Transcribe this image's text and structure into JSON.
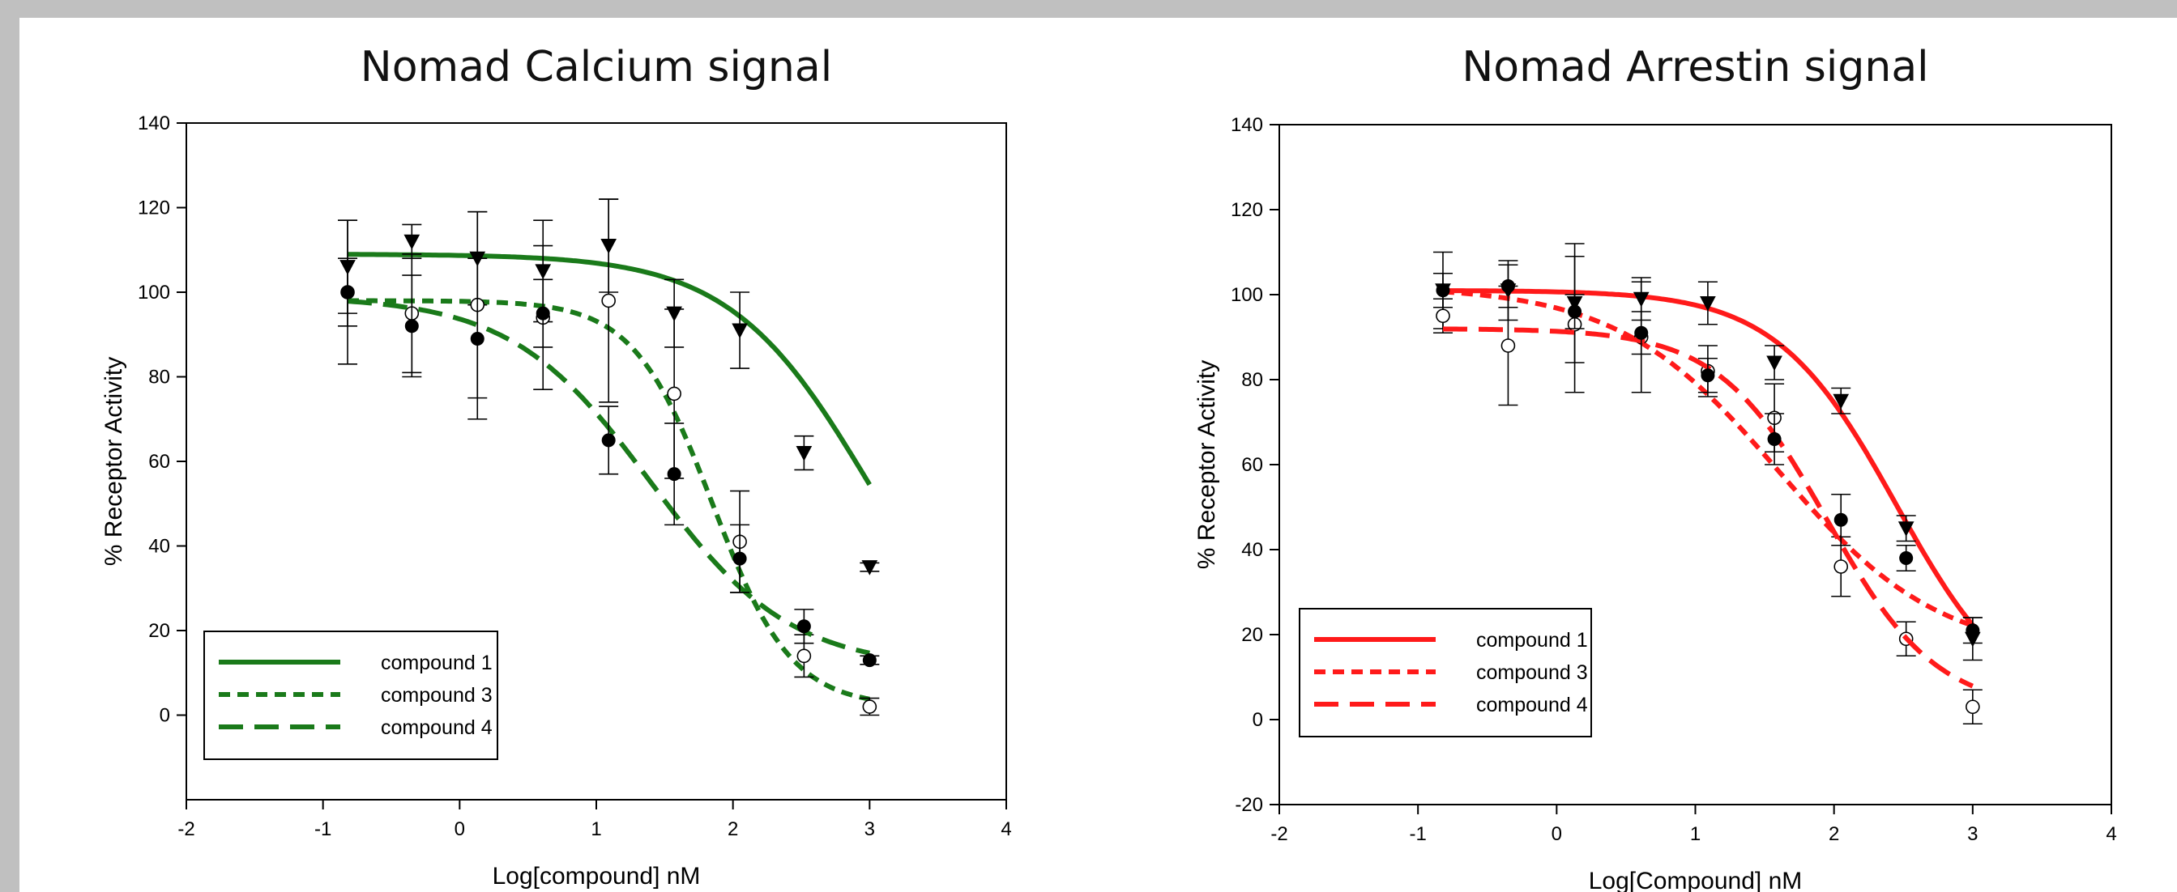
{
  "chart_data": [
    {
      "type": "scatter",
      "title": "Nomad Calcium signal",
      "xlabel": "Log[compound] nM",
      "ylabel": "% Receptor Activity",
      "xlim": [
        -2,
        4
      ],
      "ylim": [
        -20,
        140
      ],
      "x_ticks": [
        "-2",
        "-1",
        "0",
        "1",
        "2",
        "3",
        "4"
      ],
      "y_ticks": [
        "0",
        "20",
        "40",
        "60",
        "80",
        "100",
        "120",
        "140"
      ],
      "y_tick_values": [
        0,
        20,
        40,
        60,
        80,
        100,
        120,
        140
      ],
      "grid": false,
      "legend_position": "bottom-left",
      "color": "#1a7a1a",
      "series": [
        {
          "name": "compound 1",
          "marker": "triangle-down",
          "line": "solid",
          "x": [
            -0.82,
            -0.35,
            0.13,
            0.61,
            1.09,
            1.57,
            2.05,
            2.52,
            3.0
          ],
          "y": [
            106,
            112,
            108,
            105,
            111,
            95,
            91,
            62,
            35
          ],
          "err": [
            11,
            4,
            11,
            12,
            11,
            8,
            9,
            4,
            1
          ],
          "fit": {
            "top": 109,
            "bottom": 0,
            "logic50": 3.0,
            "hill": 0.85
          }
        },
        {
          "name": "compound 3",
          "marker": "circle-open",
          "line": "short-dash",
          "x": [
            -0.82,
            -0.35,
            0.13,
            0.61,
            1.09,
            1.57,
            2.05,
            2.52,
            3.0
          ],
          "y": [
            100,
            95,
            97,
            94,
            98,
            76,
            41,
            14,
            2
          ],
          "err": [
            17,
            14,
            22,
            17,
            24,
            20,
            12,
            5,
            2
          ],
          "fit": {
            "top": 98,
            "bottom": 2,
            "logic50": 1.85,
            "hill": 1.5
          }
        },
        {
          "name": "compound 4",
          "marker": "circle-filled",
          "line": "long-dash",
          "x": [
            -0.82,
            -0.35,
            0.13,
            0.61,
            1.09,
            1.57,
            2.05,
            2.52,
            3.0
          ],
          "y": [
            100,
            92,
            89,
            95,
            65,
            57,
            37,
            21,
            13
          ],
          "err": [
            8,
            12,
            19,
            8,
            8,
            12,
            8,
            4,
            1
          ],
          "fit": {
            "top": 99,
            "bottom": 11,
            "logic50": 1.4,
            "hill": 0.85
          }
        }
      ]
    },
    {
      "type": "scatter",
      "title": "Nomad Arrestin signal",
      "xlabel": "Log[Compound] nM",
      "ylabel": "% Receptor Activity",
      "xlim": [
        -2,
        4
      ],
      "ylim": [
        -20,
        140
      ],
      "x_ticks": [
        "-2",
        "-1",
        "0",
        "1",
        "2",
        "3",
        "4"
      ],
      "y_ticks": [
        "-20",
        "0",
        "20",
        "40",
        "60",
        "80",
        "100",
        "120",
        "140"
      ],
      "y_tick_values": [
        -20,
        0,
        20,
        40,
        60,
        80,
        100,
        120,
        140
      ],
      "grid": false,
      "legend_position": "bottom-left",
      "color": "#ff1a1a",
      "series": [
        {
          "name": "compound 1",
          "marker": "triangle-down",
          "line": "solid",
          "x": [
            -0.82,
            -0.35,
            0.13,
            0.61,
            1.09,
            1.57,
            2.05,
            2.52,
            3.0
          ],
          "y": [
            101,
            101,
            98,
            99,
            98,
            84,
            75,
            45,
            19
          ],
          "err": [
            9,
            7,
            14,
            5,
            5,
            4,
            3,
            3,
            5
          ],
          "fit": {
            "top": 101,
            "bottom": 0,
            "logic50": 2.45,
            "hill": 1.0
          }
        },
        {
          "name": "compound 3",
          "marker": "circle-open",
          "line": "short-dash",
          "x": [
            -0.82,
            -0.35,
            0.13,
            0.61,
            1.09,
            1.57,
            2.05,
            2.52,
            3.0
          ],
          "y": [
            95,
            88,
            93,
            90,
            82,
            71,
            36,
            19,
            3
          ],
          "err": [
            4,
            14,
            16,
            13,
            6,
            8,
            7,
            4,
            4
          ],
          "fit": {
            "top": 102,
            "bottom": 15,
            "logic50": 1.6,
            "hill": 0.75
          }
        },
        {
          "name": "compound 4",
          "marker": "circle-filled",
          "line": "long-dash",
          "x": [
            -0.82,
            -0.35,
            0.13,
            0.61,
            1.09,
            1.57,
            2.05,
            2.52,
            3.0
          ],
          "y": [
            101,
            102,
            96,
            91,
            81,
            66,
            47,
            38,
            21
          ],
          "err": [
            4,
            5,
            4,
            5,
            4,
            6,
            6,
            3,
            3
          ],
          "fit": {
            "top": 92,
            "bottom": 2,
            "logic50": 1.95,
            "hill": 1.1
          }
        }
      ]
    }
  ]
}
